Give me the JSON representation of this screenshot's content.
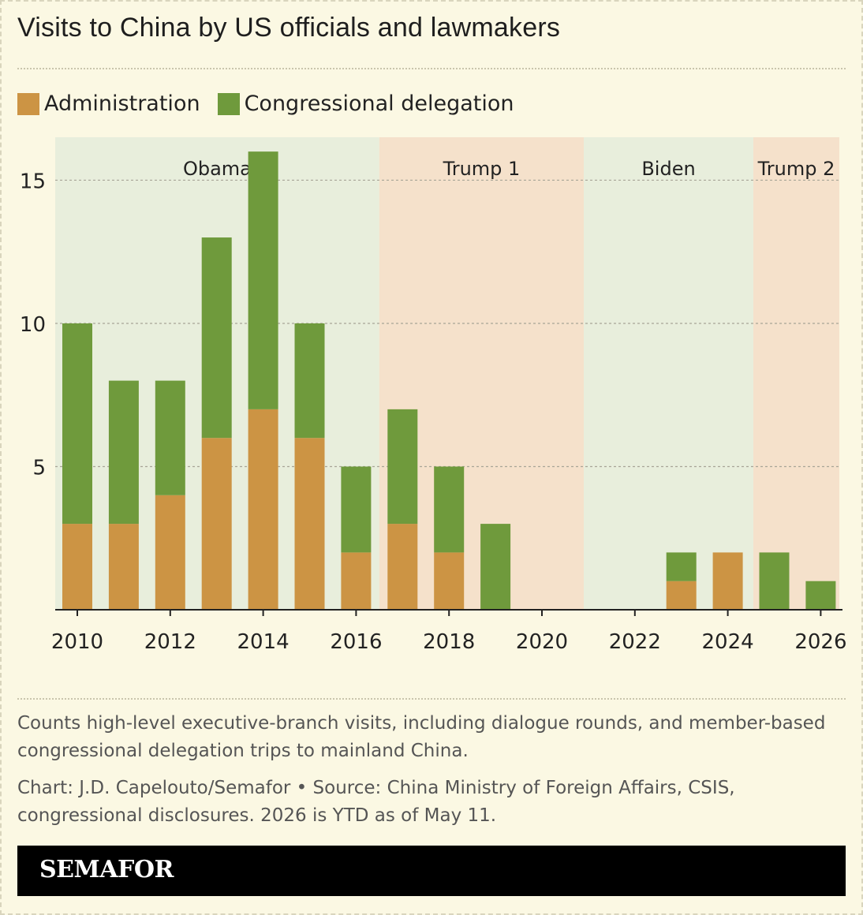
{
  "title": "Visits to China by US officials and lawmakers",
  "legend": [
    {
      "label": "Administration",
      "color": "#cc9444"
    },
    {
      "label": "Congressional delegation",
      "color": "#6f9a3c"
    }
  ],
  "note": "Counts high-level executive-branch visits, including dialogue rounds, and member-based congressional delegation trips to mainland China.",
  "credit": "Chart: J.D. Capelouto/Semafor • Source: China Ministry of Foreign Affairs, CSIS, congressional disclosures. 2026 is YTD as of May 11.",
  "brand": "SEMAFOR",
  "chart_data": {
    "type": "bar",
    "stacked": true,
    "x": [
      2010,
      2011,
      2012,
      2013,
      2014,
      2015,
      2016,
      2017,
      2018,
      2019,
      2020,
      2021,
      2022,
      2023,
      2024,
      2025,
      2026
    ],
    "series": [
      {
        "name": "Administration",
        "color": "#cc9444",
        "values": [
          3,
          3,
          4,
          6,
          7,
          6,
          2,
          3,
          2,
          0,
          0,
          0,
          0,
          1,
          2,
          0,
          0
        ]
      },
      {
        "name": "Congressional delegation",
        "color": "#6f9a3c",
        "values": [
          7,
          5,
          4,
          7,
          9,
          4,
          3,
          4,
          3,
          3,
          0,
          0,
          0,
          1,
          0,
          2,
          1
        ]
      }
    ],
    "ylim": [
      0,
      16.5
    ],
    "yticks": [
      5,
      10,
      15
    ],
    "xticks": [
      2010,
      2012,
      2014,
      2016,
      2018,
      2020,
      2022,
      2024,
      2026
    ],
    "grid": true,
    "periods": [
      {
        "label": "Obama",
        "start": 2009.5,
        "end": 2016.5,
        "color": "#e8eedc"
      },
      {
        "label": "Trump 1",
        "start": 2016.5,
        "end": 2020.9,
        "color": "#f5e1cb"
      },
      {
        "label": "Biden",
        "start": 2020.9,
        "end": 2024.55,
        "color": "#e8eedc"
      },
      {
        "label": "Trump 2",
        "start": 2024.55,
        "end": 2026.5,
        "color": "#f5e1cb"
      }
    ]
  }
}
